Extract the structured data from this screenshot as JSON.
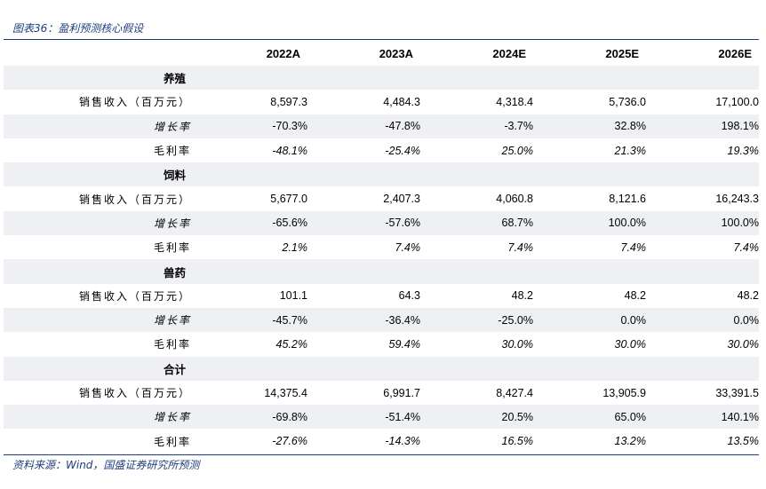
{
  "figure": {
    "title": "图表36：盈利预测核心假设",
    "source": "资料来源：Wind，国盛证券研究所预测"
  },
  "table": {
    "header": [
      "",
      "2022A",
      "2023A",
      "2024E",
      "2025E",
      "2026E"
    ],
    "sections": [
      {
        "name": "养殖",
        "rows": [
          {
            "label": "销售收入（百万元）",
            "values": [
              "8,597.3",
              "4,484.3",
              "4,318.4",
              "5,736.0",
              "17,100.0"
            ]
          },
          {
            "label": "增长率",
            "values": [
              "-70.3%",
              "-47.8%",
              "-3.7%",
              "32.8%",
              "198.1%"
            ]
          },
          {
            "label": "毛利率",
            "values": [
              "-48.1%",
              "-25.4%",
              "25.0%",
              "21.3%",
              "19.3%"
            ]
          }
        ]
      },
      {
        "name": "饲料",
        "rows": [
          {
            "label": "销售收入（百万元）",
            "values": [
              "5,677.0",
              "2,407.3",
              "4,060.8",
              "8,121.6",
              "16,243.3"
            ]
          },
          {
            "label": "增长率",
            "values": [
              "-65.6%",
              "-57.6%",
              "68.7%",
              "100.0%",
              "100.0%"
            ]
          },
          {
            "label": "毛利率",
            "values": [
              "2.1%",
              "7.4%",
              "7.4%",
              "7.4%",
              "7.4%"
            ]
          }
        ]
      },
      {
        "name": "兽药",
        "rows": [
          {
            "label": "销售收入（百万元）",
            "values": [
              "101.1",
              "64.3",
              "48.2",
              "48.2",
              "48.2"
            ]
          },
          {
            "label": "增长率",
            "values": [
              "-45.7%",
              "-36.4%",
              "-25.0%",
              "0.0%",
              "0.0%"
            ]
          },
          {
            "label": "毛利率",
            "values": [
              "45.2%",
              "59.4%",
              "30.0%",
              "30.0%",
              "30.0%"
            ]
          }
        ]
      },
      {
        "name": "合计",
        "rows": [
          {
            "label": "销售收入（百万元）",
            "values": [
              "14,375.4",
              "6,991.7",
              "8,427.4",
              "13,905.9",
              "33,391.5"
            ]
          },
          {
            "label": "增长率",
            "values": [
              "-69.8%",
              "-51.4%",
              "20.5%",
              "65.0%",
              "140.1%"
            ]
          },
          {
            "label": "毛利率",
            "values": [
              "-27.6%",
              "-14.3%",
              "16.5%",
              "13.2%",
              "13.5%"
            ]
          }
        ]
      }
    ]
  },
  "colors": {
    "accent": "#1f3d7a",
    "row_shade": "#eef0f3"
  }
}
